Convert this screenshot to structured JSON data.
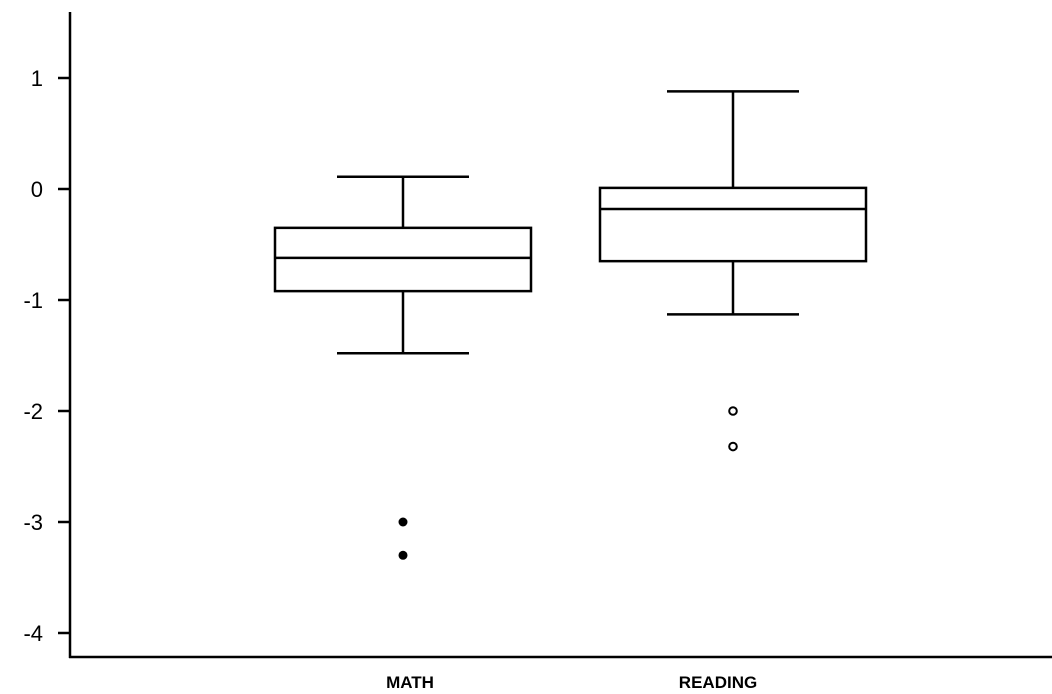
{
  "chart_data": {
    "type": "boxplot",
    "title": "",
    "xlabel": "",
    "ylabel": "",
    "ylim": [
      -4.2,
      1.6
    ],
    "yticks": [
      1,
      0,
      -1,
      -2,
      -3,
      -4
    ],
    "ytick_labels": [
      "1",
      "0",
      "-1",
      "-2",
      "-3",
      "-4"
    ],
    "grid": false,
    "categories": [
      "MATH",
      "READING"
    ],
    "boxes": [
      {
        "category": "MATH",
        "whisker_low": -1.48,
        "q1": -0.92,
        "median": -0.62,
        "q3": -0.35,
        "whisker_high": 0.11,
        "outliers": [
          {
            "value": -3.0,
            "style": "filled"
          },
          {
            "value": -3.3,
            "style": "filled"
          }
        ]
      },
      {
        "category": "READING",
        "whisker_low": -1.13,
        "q1": -0.65,
        "median": -0.18,
        "q3": 0.01,
        "whisker_high": 0.88,
        "outliers": [
          {
            "value": -2.0,
            "style": "open"
          },
          {
            "value": -2.32,
            "style": "open"
          }
        ]
      }
    ],
    "colors": {
      "stroke": "#000000",
      "background": "#ffffff"
    }
  }
}
